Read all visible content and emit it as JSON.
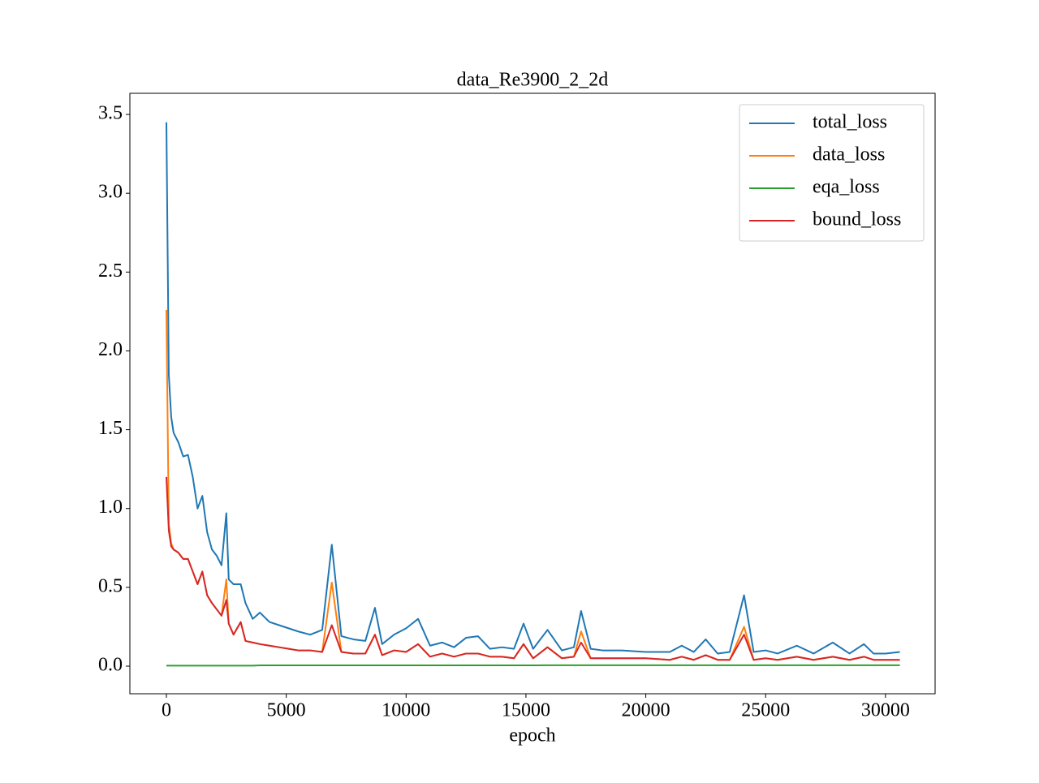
{
  "chart_data": {
    "type": "line",
    "title": "data_Re3900_2_2d",
    "x_label": "epoch",
    "x": [
      0,
      100,
      200,
      300,
      500,
      700,
      900,
      1100,
      1300,
      1500,
      1700,
      1900,
      2100,
      2300,
      2500,
      2600,
      2800,
      3100,
      3300,
      3600,
      3900,
      4300,
      4700,
      5100,
      5500,
      6000,
      6500,
      6900,
      7300,
      7800,
      8300,
      8700,
      9000,
      9500,
      10000,
      10500,
      11000,
      11500,
      12000,
      12500,
      13000,
      13500,
      14000,
      14500,
      14900,
      15300,
      15900,
      16500,
      17000,
      17300,
      17700,
      18200,
      19000,
      20000,
      21000,
      21500,
      22000,
      22500,
      23000,
      23500,
      24100,
      24500,
      25000,
      25500,
      26300,
      27000,
      27800,
      28500,
      29100,
      29500,
      30000,
      30600
    ],
    "series": [
      {
        "name": "total_loss",
        "color": "#1f77b4",
        "values": [
          3.45,
          1.85,
          1.58,
          1.48,
          1.42,
          1.33,
          1.34,
          1.2,
          1.0,
          1.08,
          0.85,
          0.74,
          0.7,
          0.64,
          0.97,
          0.55,
          0.52,
          0.52,
          0.4,
          0.3,
          0.34,
          0.28,
          0.26,
          0.24,
          0.22,
          0.2,
          0.23,
          0.77,
          0.19,
          0.17,
          0.16,
          0.37,
          0.14,
          0.2,
          0.24,
          0.3,
          0.13,
          0.15,
          0.12,
          0.18,
          0.19,
          0.11,
          0.12,
          0.11,
          0.27,
          0.11,
          0.23,
          0.1,
          0.12,
          0.35,
          0.11,
          0.1,
          0.1,
          0.09,
          0.09,
          0.13,
          0.09,
          0.17,
          0.08,
          0.09,
          0.45,
          0.09,
          0.1,
          0.08,
          0.13,
          0.08,
          0.15,
          0.08,
          0.14,
          0.08,
          0.08,
          0.09
        ]
      },
      {
        "name": "data_loss",
        "color": "#ff7f0e",
        "values": [
          2.26,
          0.9,
          0.78,
          0.74,
          0.72,
          0.68,
          0.68,
          0.6,
          0.52,
          0.6,
          0.45,
          0.4,
          0.36,
          0.32,
          0.55,
          0.27,
          0.2,
          0.28,
          0.16,
          0.15,
          0.14,
          0.13,
          0.12,
          0.11,
          0.1,
          0.1,
          0.09,
          0.53,
          0.09,
          0.08,
          0.08,
          0.2,
          0.07,
          0.1,
          0.09,
          0.14,
          0.06,
          0.08,
          0.06,
          0.08,
          0.08,
          0.06,
          0.06,
          0.05,
          0.14,
          0.05,
          0.12,
          0.05,
          0.06,
          0.22,
          0.05,
          0.05,
          0.05,
          0.05,
          0.04,
          0.06,
          0.04,
          0.07,
          0.04,
          0.04,
          0.25,
          0.04,
          0.05,
          0.04,
          0.06,
          0.04,
          0.06,
          0.04,
          0.06,
          0.04,
          0.04,
          0.04
        ]
      },
      {
        "name": "eqa_loss",
        "color": "#2ca02c",
        "values": [
          0.003,
          0.003,
          0.003,
          0.003,
          0.003,
          0.003,
          0.003,
          0.003,
          0.003,
          0.003,
          0.003,
          0.003,
          0.003,
          0.003,
          0.003,
          0.003,
          0.003,
          0.003,
          0.003,
          0.003,
          0.005,
          0.005,
          0.005,
          0.005,
          0.005,
          0.005,
          0.005,
          0.005,
          0.005,
          0.005,
          0.005,
          0.005,
          0.005,
          0.005,
          0.005,
          0.005,
          0.005,
          0.005,
          0.005,
          0.005,
          0.005,
          0.005,
          0.005,
          0.005,
          0.005,
          0.005,
          0.006,
          0.006,
          0.006,
          0.006,
          0.006,
          0.006,
          0.006,
          0.006,
          0.006,
          0.006,
          0.006,
          0.006,
          0.006,
          0.006,
          0.006,
          0.006,
          0.006,
          0.006,
          0.006,
          0.006,
          0.006,
          0.006,
          0.006,
          0.006,
          0.006,
          0.006
        ]
      },
      {
        "name": "bound_loss",
        "color": "#d62728",
        "values": [
          1.2,
          0.86,
          0.76,
          0.74,
          0.72,
          0.68,
          0.68,
          0.6,
          0.52,
          0.6,
          0.45,
          0.4,
          0.36,
          0.32,
          0.42,
          0.27,
          0.2,
          0.28,
          0.16,
          0.15,
          0.14,
          0.13,
          0.12,
          0.11,
          0.1,
          0.1,
          0.09,
          0.26,
          0.09,
          0.08,
          0.08,
          0.2,
          0.07,
          0.1,
          0.09,
          0.14,
          0.06,
          0.08,
          0.06,
          0.08,
          0.08,
          0.06,
          0.06,
          0.05,
          0.14,
          0.05,
          0.12,
          0.05,
          0.06,
          0.15,
          0.05,
          0.05,
          0.05,
          0.05,
          0.04,
          0.06,
          0.04,
          0.07,
          0.04,
          0.04,
          0.2,
          0.04,
          0.05,
          0.04,
          0.06,
          0.04,
          0.06,
          0.04,
          0.06,
          0.04,
          0.04,
          0.04
        ]
      }
    ],
    "xlim": [
      -1524,
      32070
    ],
    "ylim": [
      -0.175,
      3.634
    ],
    "xticks": [
      0,
      5000,
      10000,
      15000,
      20000,
      25000,
      30000
    ],
    "yticks": [
      {
        "value": 0,
        "label": "0.0"
      },
      0.5,
      {
        "value": 1,
        "label": "1.0"
      },
      1.5,
      {
        "value": 2,
        "label": "2.0"
      },
      2.5,
      {
        "value": 3,
        "label": "3.0"
      },
      3.5
    ],
    "legend": "upper right",
    "grid": false
  }
}
